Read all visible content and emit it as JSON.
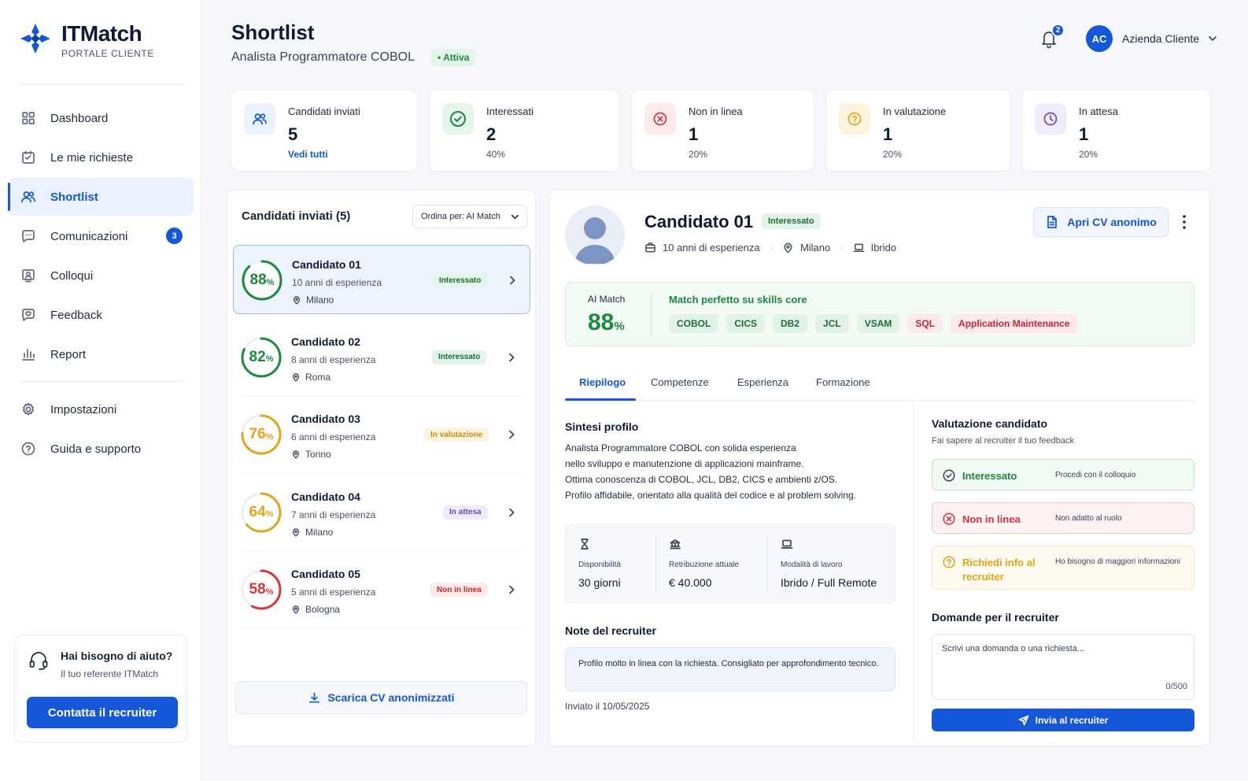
{
  "brand": {
    "name": "ITMatch",
    "subtitle": "PORTALE CLIENTE",
    "color": "#1457d9"
  },
  "sidebar": {
    "items": [
      {
        "label": "Dashboard",
        "icon": "grid-icon"
      },
      {
        "label": "Le mie richieste",
        "icon": "requests-icon"
      },
      {
        "label": "Shortlist",
        "icon": "users-icon",
        "active": true
      },
      {
        "label": "Comunicazioni",
        "icon": "chat-icon",
        "badge": "3"
      },
      {
        "label": "Colloqui",
        "icon": "interview-icon"
      },
      {
        "label": "Feedback",
        "icon": "feedback-icon"
      },
      {
        "label": "Report",
        "icon": "chart-icon"
      }
    ],
    "secondary": [
      {
        "label": "Impostazioni",
        "icon": "gear-icon"
      },
      {
        "label": "Guida e supporto",
        "icon": "help-icon"
      }
    ],
    "help": {
      "title": "Hai bisogno di aiuto?",
      "subtitle": "Il tuo referente ITMatch",
      "button": "Contatta il recruiter"
    }
  },
  "header": {
    "title": "Shortlist",
    "subtitle": "Analista Programmatore COBOL",
    "status": "• Attiva",
    "notifications": "2",
    "user_initials": "AC",
    "user_name": "Azienda Cliente"
  },
  "stats": [
    {
      "label": "Candidati inviati",
      "value": "5",
      "sub": "Vedi tutti",
      "color": "#1457d9"
    },
    {
      "label": "Interessati",
      "value": "2",
      "sub": "40%",
      "color": "#1b8a3c"
    },
    {
      "label": "Non in linea",
      "value": "1",
      "sub": "20%",
      "color": "#d9363b"
    },
    {
      "label": "In valutazione",
      "value": "1",
      "sub": "20%",
      "color": "#e6a31a"
    },
    {
      "label": "In attesa",
      "value": "1",
      "sub": "20%",
      "color": "#6b48c8"
    }
  ],
  "candidates": {
    "title": "Candidati inviati (5)",
    "sort_label": "Ordina per: AI Match",
    "download_button": "Scarica CV anonimizzati",
    "items": [
      {
        "name": "Candidato 01",
        "experience": "10 anni di esperienza",
        "city": "Milano",
        "match": 88,
        "match_label": "88",
        "status": "Interessato",
        "color": "#1b8a3c"
      },
      {
        "name": "Candidato 02",
        "experience": "8 anni di esperienza",
        "city": "Roma",
        "match": 82,
        "match_label": "82",
        "status": "Interessato",
        "color": "#1b8a3c"
      },
      {
        "name": "Candidato 03",
        "experience": "6 anni di esperienza",
        "city": "Torino",
        "match": 76,
        "match_label": "76",
        "status": "In valutazione",
        "color": "#e6a31a"
      },
      {
        "name": "Candidato 04",
        "experience": "7 anni di esperienza",
        "city": "Milano",
        "match": 64,
        "match_label": "64",
        "status": "In attesa",
        "color": "#e6a31a"
      },
      {
        "name": "Candidato 05",
        "experience": "5 anni di esperienza",
        "city": "Bologna",
        "match": 58,
        "match_label": "58",
        "status": "Non in linea",
        "color": "#d9363b"
      }
    ]
  },
  "detail": {
    "name": "Candidato 01",
    "status": "Interessato",
    "experience": "10 anni di esperienza",
    "city": "Milano",
    "work_mode": "Ibrido",
    "cv_button": "Apri CV anonimo",
    "match_label": "AI Match",
    "match_value": "88",
    "match_unit": "%",
    "match_title": "Match perfetto su skills core",
    "skills": [
      {
        "label": "COBOL",
        "tone": "green"
      },
      {
        "label": "CICS",
        "tone": "green"
      },
      {
        "label": "DB2",
        "tone": "green"
      },
      {
        "label": "JCL",
        "tone": "green"
      },
      {
        "label": "VSAM",
        "tone": "green"
      },
      {
        "label": "SQL",
        "tone": "red"
      },
      {
        "label": "Application Maintenance",
        "tone": "red"
      }
    ],
    "tabs": [
      "Riepilogo",
      "Competenze",
      "Esperienza",
      "Formazione"
    ],
    "summary_title": "Sintesi profilo",
    "summary_lines": [
      "Analista Programmatore COBOL con solida esperienza",
      "nello sviluppo e manutenzione di applicazioni mainframe.",
      "Ottima conoscenza di COBOL, JCL, DB2, CICS e ambienti z/OS.",
      "Profilo affidabile, orientato alla qualità del codice e al problem solving."
    ],
    "info": [
      {
        "label": "Disponibilità",
        "value": "30 giorni",
        "icon": "hourglass-icon"
      },
      {
        "label": "Retribuzione attuale",
        "value": "€ 40.000",
        "icon": "salary-icon"
      },
      {
        "label": "Modalità di lavoro",
        "value": "Ibrido / Full Remote",
        "icon": "laptop-icon"
      }
    ],
    "notes_title": "Note del recruiter",
    "notes": "Profilo molto in linea con la richiesta. Consigliato per approfondimento tecnico.",
    "sent_date": "Inviato il 10/05/2025",
    "evaluation": {
      "title": "Valutazione candidato",
      "subtitle": "Fai sapere al recruiter il tuo feedback",
      "options": [
        {
          "label": "Interessato",
          "desc": "Procedi con il colloquio"
        },
        {
          "label": "Non in linea",
          "desc": "Non adatto al ruolo"
        },
        {
          "label": "Richiedi info al recruiter",
          "desc": "Ho bisogno di maggiori informazioni"
        }
      ]
    },
    "questions_title": "Domande per il recruiter",
    "questions_placeholder": "Scrivi una domanda o una richiesta...",
    "questions_counter": "0/500",
    "send_button": "Invia al recruiter"
  }
}
